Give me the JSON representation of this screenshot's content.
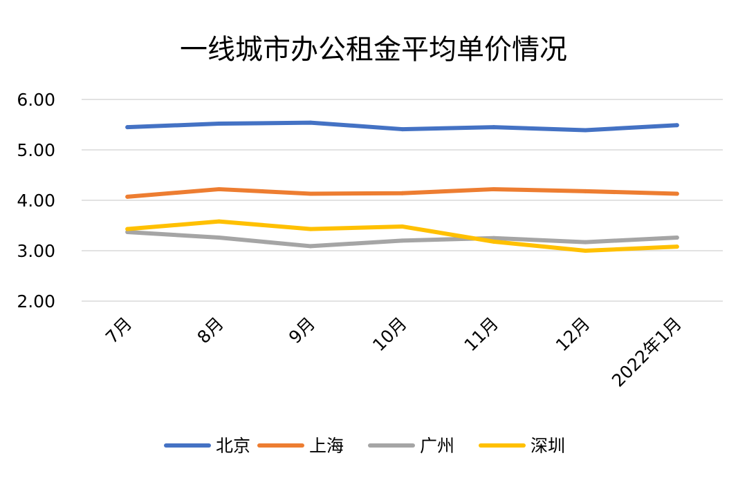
{
  "chart_data": {
    "type": "line",
    "title": "一线城市办公租金平均单价情况",
    "xlabel": "",
    "ylabel": "",
    "categories": [
      "7月",
      "8月",
      "9月",
      "10月",
      "11月",
      "12月",
      "2022年1月"
    ],
    "yticks": [
      "2.00",
      "3.00",
      "4.00",
      "5.00",
      "6.00"
    ],
    "ylim": [
      2,
      6
    ],
    "grid": true,
    "legend_position": "bottom",
    "series": [
      {
        "name": "北京",
        "color": "#4472C4",
        "values": [
          5.45,
          5.52,
          5.54,
          5.41,
          5.45,
          5.39,
          5.49
        ]
      },
      {
        "name": "上海",
        "color": "#ED7D31",
        "values": [
          4.07,
          4.22,
          4.13,
          4.14,
          4.22,
          4.18,
          4.13
        ]
      },
      {
        "name": "广州",
        "color": "#A5A5A5",
        "values": [
          3.37,
          3.26,
          3.09,
          3.2,
          3.25,
          3.17,
          3.26
        ]
      },
      {
        "name": "深圳",
        "color": "#FFC000",
        "values": [
          3.43,
          3.58,
          3.43,
          3.48,
          3.18,
          3.0,
          3.08
        ]
      }
    ]
  }
}
